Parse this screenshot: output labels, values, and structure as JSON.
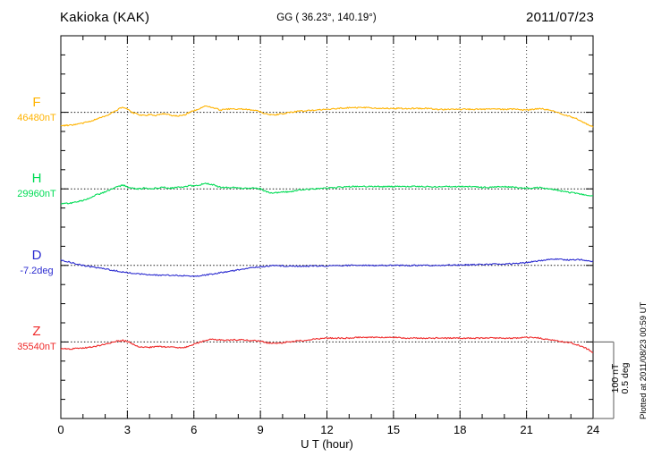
{
  "header": {
    "station": "Kakioka (KAK)",
    "coords": "GG ( 36.23°, 140.19°)",
    "date": "2011/07/23"
  },
  "xaxis": {
    "label": "U T (hour)"
  },
  "scale_bar": {
    "labels": [
      "100 nT",
      "0.5 deg"
    ]
  },
  "footer_note": "Plotted at 2011/08/23 00:59 UT",
  "chart_data": {
    "type": "line",
    "title": "Kakioka (KAK)",
    "subtitle": "GG ( 36.23°, 140.19°)",
    "date": "2011/07/23",
    "xlabel": "U T (hour)",
    "x_range": [
      0,
      24
    ],
    "x_ticks": [
      0,
      3,
      6,
      9,
      12,
      15,
      18,
      21,
      24
    ],
    "grid": "dotted vertical lines every 3 h; dotted horizontal baseline per trace; minor ticks every 1 h (x) and 25 nT / 0.125 deg (y)",
    "legend_position": "left margin channel labels",
    "scale_division": {
      "nT": 100,
      "deg": 0.5,
      "labels": [
        "100 nT",
        "0.5 deg"
      ]
    },
    "series": [
      {
        "name": "F",
        "unit": "nT",
        "baseline_value": 46480,
        "baseline_label": "46480nT",
        "color": "#FFB300",
        "x": [
          0,
          0.3,
          0.6,
          1,
          1.3,
          1.6,
          2,
          2.3,
          2.6,
          2.8,
          3,
          3.2,
          3.5,
          3.8,
          4,
          4.3,
          4.6,
          5,
          5.3,
          5.6,
          5.8,
          6,
          6.2,
          6.5,
          6.8,
          7,
          7.2,
          7.5,
          7.8,
          8,
          8.3,
          8.6,
          9,
          9.2,
          9.4,
          9.7,
          10,
          10.3,
          10.6,
          11,
          11.5,
          12,
          12.5,
          13,
          13.5,
          14,
          14.5,
          15,
          15.5,
          16,
          16.5,
          17,
          17.5,
          18,
          18.5,
          19,
          19.5,
          20,
          20.5,
          21,
          21.3,
          21.6,
          22,
          22.3,
          22.6,
          23,
          23.3,
          23.6,
          24
        ],
        "offsets": [
          -18,
          -17,
          -16,
          -14,
          -12,
          -9,
          -5,
          -1,
          4,
          7,
          4,
          0,
          -3,
          -4,
          -3,
          -4,
          -2,
          -4,
          -5,
          -3,
          0,
          2,
          4,
          8,
          7,
          5,
          3,
          4,
          5,
          4,
          4,
          3,
          1,
          -2,
          -3,
          -3,
          -2,
          0,
          1,
          2,
          3,
          4,
          5,
          6,
          6,
          6,
          5,
          5,
          5,
          5,
          5,
          4,
          4,
          4,
          4,
          4,
          4,
          4,
          4,
          3,
          4,
          5,
          3,
          1,
          -2,
          -6,
          -9,
          -14,
          -19
        ]
      },
      {
        "name": "H",
        "unit": "nT",
        "baseline_value": 29960,
        "baseline_label": "29960nT",
        "color": "#00DC55",
        "x": [
          0,
          0.3,
          0.6,
          1,
          1.3,
          1.6,
          2,
          2.3,
          2.6,
          2.8,
          3,
          3.2,
          3.5,
          3.8,
          4,
          4.3,
          4.6,
          5,
          5.3,
          5.6,
          5.8,
          6,
          6.2,
          6.5,
          6.8,
          7,
          7.2,
          7.5,
          7.8,
          8,
          8.3,
          8.6,
          9,
          9.2,
          9.4,
          9.7,
          10,
          10.3,
          10.6,
          11,
          11.5,
          12,
          12.5,
          13,
          13.5,
          14,
          14.5,
          15,
          15.5,
          16,
          16.5,
          17,
          17.5,
          18,
          18.5,
          19,
          19.5,
          20,
          20.5,
          21,
          21.3,
          21.6,
          22,
          22.3,
          22.6,
          23,
          23.3,
          23.6,
          24
        ],
        "offsets": [
          -20,
          -19,
          -18,
          -15,
          -12,
          -8,
          -4,
          0,
          3,
          5,
          3,
          1,
          0,
          1,
          0,
          1,
          2,
          1,
          2,
          3,
          4,
          4,
          5,
          7,
          6,
          4,
          2,
          2,
          2,
          1,
          1,
          1,
          0,
          -3,
          -5,
          -5,
          -4,
          -4,
          -2,
          -1,
          0,
          1,
          2,
          3,
          3,
          3,
          3,
          3,
          3,
          3,
          3,
          3,
          3,
          3,
          3,
          2,
          2,
          3,
          2,
          1,
          1,
          2,
          0,
          -1,
          -3,
          -5,
          -6,
          -8,
          -9
        ]
      },
      {
        "name": "D",
        "unit": "deg",
        "baseline_value": -7.2,
        "baseline_label": "-7.2deg",
        "color": "#2B2BD0",
        "x": [
          0,
          0.5,
          1,
          1.5,
          2,
          2.5,
          3,
          3.5,
          4,
          4.5,
          5,
          5.5,
          6,
          6.3,
          6.6,
          7,
          7.5,
          8,
          8.5,
          9,
          9.5,
          10,
          10.5,
          11,
          11.5,
          12,
          13,
          14,
          15,
          16,
          17,
          17.5,
          18,
          19,
          20,
          20.5,
          21,
          21.5,
          22,
          22.3,
          22.6,
          23,
          23.3,
          23.6,
          24
        ],
        "offsets": [
          0.035,
          0.018,
          0,
          -0.012,
          -0.023,
          -0.035,
          -0.047,
          -0.055,
          -0.061,
          -0.064,
          -0.064,
          -0.067,
          -0.07,
          -0.067,
          -0.061,
          -0.053,
          -0.041,
          -0.029,
          -0.018,
          -0.009,
          -0.003,
          -0.003,
          -0.006,
          -0.006,
          -0.003,
          -0.003,
          0,
          0,
          0,
          0,
          0,
          0.003,
          0.003,
          0.006,
          0.009,
          0.012,
          0.018,
          0.029,
          0.038,
          0.041,
          0.038,
          0.035,
          0.038,
          0.035,
          0.026
        ]
      },
      {
        "name": "Z",
        "unit": "nT",
        "baseline_value": 35540,
        "baseline_label": "35540nT",
        "color": "#EF2929",
        "x": [
          0,
          0.5,
          1,
          1.5,
          2,
          2.5,
          2.8,
          3,
          3.2,
          3.5,
          4,
          4.5,
          5,
          5.3,
          5.6,
          6,
          6.3,
          6.5,
          6.8,
          7,
          7.5,
          8,
          8.5,
          9,
          9.3,
          9.6,
          10,
          10.5,
          11,
          11.5,
          12,
          12.5,
          13,
          13.5,
          14,
          14.5,
          15,
          15.5,
          16,
          16.5,
          17,
          17.5,
          18,
          18.5,
          19,
          19.5,
          20,
          20.5,
          21,
          21.3,
          21.6,
          22,
          22.5,
          23,
          23.3,
          23.5,
          23.8,
          24
        ],
        "offsets": [
          -9,
          -9,
          -8,
          -6,
          -3,
          1,
          2,
          1,
          -2,
          -6,
          -7,
          -6,
          -7,
          -8,
          -7,
          -3,
          0,
          2,
          4,
          3,
          2,
          3,
          2,
          1,
          -1,
          -2,
          -1,
          1,
          2,
          4,
          5,
          5,
          5,
          6,
          6,
          6,
          6,
          5,
          5,
          5,
          5,
          5,
          5,
          5,
          5,
          5,
          5,
          5,
          6,
          6,
          5,
          3,
          1,
          -1,
          -4,
          -6,
          -10,
          -15
        ]
      }
    ],
    "annotation": "Plotted at 2011/08/23 00:59 UT"
  }
}
